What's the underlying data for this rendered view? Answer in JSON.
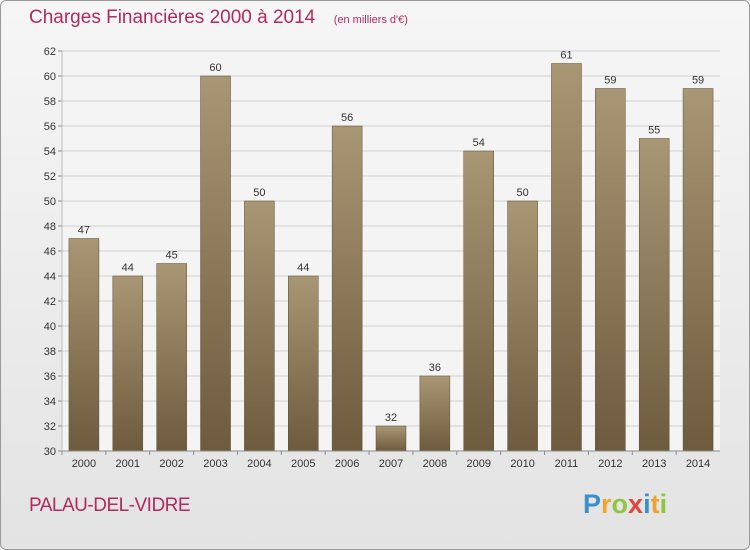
{
  "header": {
    "title": "Charges Financières 2000 à 2014",
    "subtitle": "(en milliers d'€)"
  },
  "footer": {
    "commune": "PALAU-DEL-VIDRE",
    "brand_letters": [
      {
        "char": "P",
        "color": "#3b8fcf"
      },
      {
        "char": "r",
        "color": "#f1a42a"
      },
      {
        "char": "o",
        "color": "#8fc63f"
      },
      {
        "char": "x",
        "color": "#e2463a"
      },
      {
        "char": "i",
        "color": "#3b8fcf"
      },
      {
        "char": "t",
        "color": "#f1a42a"
      },
      {
        "char": "i",
        "color": "#8fc63f"
      }
    ]
  },
  "colors": {
    "title": "#b22a5e",
    "bar_top": "#a89674",
    "bar_bottom": "#6e5b3e",
    "grid": "#cfcfcf"
  },
  "chart_data": {
    "type": "bar",
    "title": "Charges Financières 2000 à 2014",
    "subtitle": "(en milliers d'€)",
    "categories": [
      "2000",
      "2001",
      "2002",
      "2003",
      "2004",
      "2005",
      "2006",
      "2007",
      "2008",
      "2009",
      "2010",
      "2011",
      "2012",
      "2013",
      "2014"
    ],
    "values": [
      47,
      44,
      45,
      60,
      50,
      44,
      56,
      32,
      36,
      54,
      50,
      61,
      59,
      55,
      59
    ],
    "ylim": [
      30,
      62
    ],
    "yticks": [
      30,
      32,
      34,
      36,
      38,
      40,
      42,
      44,
      46,
      48,
      50,
      52,
      54,
      56,
      58,
      60,
      62
    ],
    "grid": true,
    "legend": "none"
  }
}
